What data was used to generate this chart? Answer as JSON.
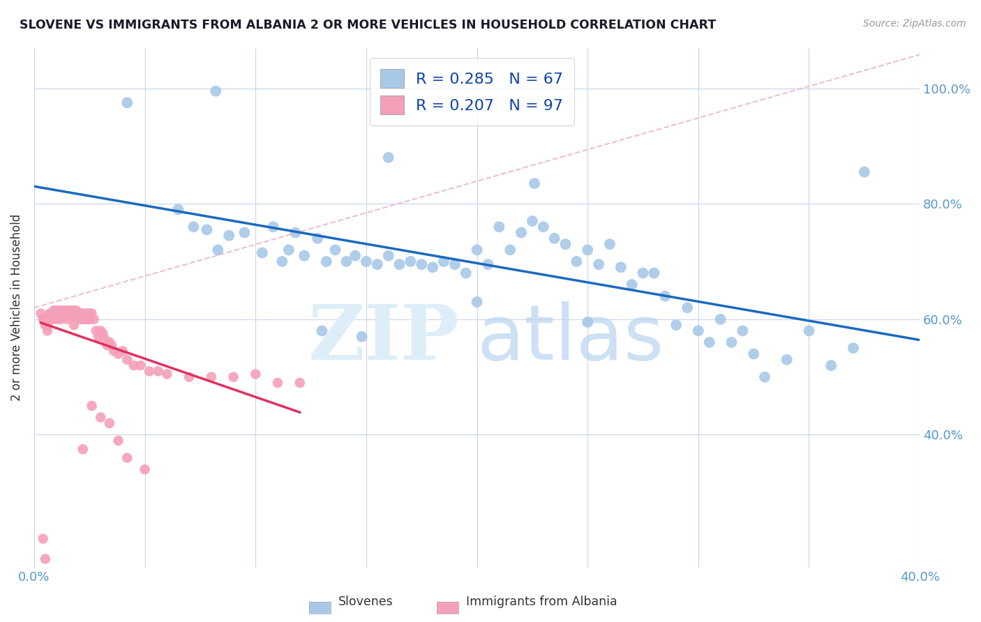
{
  "title": "SLOVENE VS IMMIGRANTS FROM ALBANIA 2 OR MORE VEHICLES IN HOUSEHOLD CORRELATION CHART",
  "source": "Source: ZipAtlas.com",
  "ylabel": "2 or more Vehicles in Household",
  "xmin": 0.0,
  "xmax": 0.4,
  "ymin": 0.17,
  "ymax": 1.07,
  "xtick_positions": [
    0.0,
    0.05,
    0.1,
    0.15,
    0.2,
    0.25,
    0.3,
    0.35,
    0.4
  ],
  "xticklabels": [
    "0.0%",
    "",
    "",
    "",
    "",
    "",
    "",
    "",
    "40.0%"
  ],
  "ytick_positions": [
    0.4,
    0.6,
    0.8,
    1.0
  ],
  "yticklabels": [
    "40.0%",
    "60.0%",
    "80.0%",
    "100.0%"
  ],
  "legend_label1": "Slovenes",
  "legend_label2": "Immigrants from Albania",
  "R1": 0.285,
  "N1": 67,
  "R2": 0.207,
  "N2": 97,
  "color1": "#a8c8e8",
  "color2": "#f4a0b8",
  "line_color1": "#1a6abf",
  "line_color2": "#e03060",
  "diag_color": "#e8b0c0",
  "tick_color": "#5599cc",
  "blue_x": [
    0.042,
    0.082,
    0.16,
    0.226,
    0.375,
    0.065,
    0.072,
    0.078,
    0.083,
    0.088,
    0.095,
    0.103,
    0.108,
    0.112,
    0.115,
    0.118,
    0.122,
    0.128,
    0.132,
    0.136,
    0.141,
    0.145,
    0.15,
    0.155,
    0.16,
    0.165,
    0.17,
    0.175,
    0.18,
    0.185,
    0.19,
    0.195,
    0.2,
    0.205,
    0.21,
    0.215,
    0.22,
    0.225,
    0.23,
    0.235,
    0.24,
    0.245,
    0.25,
    0.255,
    0.26,
    0.265,
    0.27,
    0.275,
    0.28,
    0.285,
    0.29,
    0.295,
    0.3,
    0.305,
    0.31,
    0.315,
    0.32,
    0.325,
    0.33,
    0.34,
    0.35,
    0.36,
    0.37,
    0.13,
    0.148,
    0.2,
    0.25
  ],
  "blue_y": [
    0.975,
    0.995,
    0.88,
    0.835,
    0.855,
    0.79,
    0.76,
    0.755,
    0.72,
    0.745,
    0.75,
    0.715,
    0.76,
    0.7,
    0.72,
    0.75,
    0.71,
    0.74,
    0.7,
    0.72,
    0.7,
    0.71,
    0.7,
    0.695,
    0.71,
    0.695,
    0.7,
    0.695,
    0.69,
    0.7,
    0.695,
    0.68,
    0.72,
    0.695,
    0.76,
    0.72,
    0.75,
    0.77,
    0.76,
    0.74,
    0.73,
    0.7,
    0.72,
    0.695,
    0.73,
    0.69,
    0.66,
    0.68,
    0.68,
    0.64,
    0.59,
    0.62,
    0.58,
    0.56,
    0.6,
    0.56,
    0.58,
    0.54,
    0.5,
    0.53,
    0.58,
    0.52,
    0.55,
    0.58,
    0.57,
    0.63,
    0.595
  ],
  "pink_x": [
    0.004,
    0.005,
    0.005,
    0.006,
    0.006,
    0.007,
    0.007,
    0.008,
    0.008,
    0.009,
    0.009,
    0.009,
    0.01,
    0.01,
    0.01,
    0.011,
    0.011,
    0.011,
    0.012,
    0.012,
    0.012,
    0.013,
    0.013,
    0.013,
    0.014,
    0.014,
    0.014,
    0.015,
    0.015,
    0.015,
    0.016,
    0.016,
    0.016,
    0.017,
    0.017,
    0.017,
    0.018,
    0.018,
    0.019,
    0.019,
    0.02,
    0.02,
    0.021,
    0.021,
    0.022,
    0.022,
    0.023,
    0.023,
    0.024,
    0.024,
    0.025,
    0.025,
    0.026,
    0.027,
    0.028,
    0.029,
    0.03,
    0.031,
    0.032,
    0.033,
    0.034,
    0.035,
    0.036,
    0.038,
    0.04,
    0.042,
    0.045,
    0.048,
    0.052,
    0.056,
    0.06,
    0.07,
    0.08,
    0.09,
    0.1,
    0.11,
    0.12,
    0.003,
    0.004,
    0.005,
    0.006,
    0.007,
    0.008,
    0.009,
    0.01,
    0.011,
    0.012,
    0.013,
    0.015,
    0.018,
    0.022,
    0.026,
    0.03,
    0.034,
    0.038,
    0.042,
    0.05
  ],
  "pink_y": [
    0.22,
    0.185,
    0.6,
    0.59,
    0.595,
    0.605,
    0.6,
    0.61,
    0.6,
    0.615,
    0.605,
    0.61,
    0.615,
    0.605,
    0.61,
    0.615,
    0.605,
    0.61,
    0.615,
    0.605,
    0.61,
    0.615,
    0.605,
    0.61,
    0.615,
    0.605,
    0.61,
    0.615,
    0.605,
    0.61,
    0.615,
    0.605,
    0.61,
    0.615,
    0.605,
    0.61,
    0.615,
    0.605,
    0.615,
    0.605,
    0.61,
    0.605,
    0.61,
    0.6,
    0.61,
    0.6,
    0.61,
    0.6,
    0.61,
    0.6,
    0.61,
    0.6,
    0.61,
    0.6,
    0.58,
    0.57,
    0.58,
    0.575,
    0.565,
    0.555,
    0.56,
    0.555,
    0.545,
    0.54,
    0.545,
    0.53,
    0.52,
    0.52,
    0.51,
    0.51,
    0.505,
    0.5,
    0.5,
    0.5,
    0.505,
    0.49,
    0.49,
    0.61,
    0.6,
    0.59,
    0.58,
    0.61,
    0.6,
    0.615,
    0.6,
    0.61,
    0.6,
    0.605,
    0.6,
    0.59,
    0.375,
    0.45,
    0.43,
    0.42,
    0.39,
    0.36,
    0.34
  ]
}
